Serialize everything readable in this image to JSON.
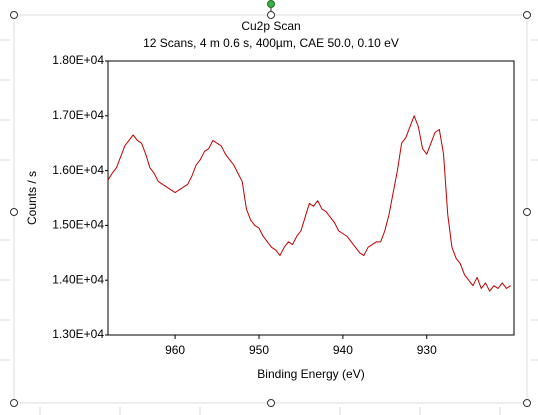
{
  "chart_data": {
    "type": "line",
    "title": "Cu2p Scan",
    "subtitle": "12 Scans,  4 m 0.6 s,  400µm,  CAE 50.0,  0.10 eV",
    "x_label": "Binding Energy (eV)",
    "y_label": "Counts / s",
    "color": "#c00000",
    "xlim": [
      968,
      919.6
    ],
    "xticks": [
      960,
      950,
      940,
      930
    ],
    "ylim": [
      13000,
      18000
    ],
    "yticks": [
      {
        "value": 13000,
        "label": "1.30E+04"
      },
      {
        "value": 14000,
        "label": "1.40E+04"
      },
      {
        "value": 15000,
        "label": "1.50E+04"
      },
      {
        "value": 16000,
        "label": "1.60E+04"
      },
      {
        "value": 17000,
        "label": "1.70E+04"
      },
      {
        "value": 18000,
        "label": "1.80E+04"
      }
    ],
    "x": [
      968,
      967.5,
      967,
      966.5,
      966,
      965.5,
      965,
      964.5,
      964,
      963.5,
      963,
      962.5,
      962,
      961.5,
      961,
      960.5,
      960,
      959.5,
      959,
      958.5,
      958,
      957.5,
      957,
      956.5,
      956,
      955.5,
      955,
      954.5,
      954,
      953.5,
      953,
      952.5,
      952,
      951.5,
      951,
      950.5,
      950,
      949.5,
      949,
      948.5,
      948,
      947.5,
      947,
      946.5,
      946,
      945.5,
      945,
      944.5,
      944,
      943.5,
      943,
      942.5,
      942,
      941.5,
      941,
      940.5,
      940,
      939.5,
      939,
      938.5,
      938,
      937.5,
      937,
      936.5,
      936,
      935.5,
      935,
      934.5,
      934,
      933.5,
      933,
      932.5,
      932,
      931.5,
      931,
      930.5,
      930,
      929.5,
      929,
      928.5,
      928,
      927.5,
      927,
      926.5,
      926,
      925.5,
      925,
      924.5,
      924,
      923.5,
      923,
      922.5,
      922,
      921.5,
      921,
      920.5,
      920
    ],
    "values": [
      15830,
      15950,
      16050,
      16250,
      16450,
      16550,
      16650,
      16550,
      16500,
      16300,
      16050,
      15950,
      15800,
      15750,
      15700,
      15650,
      15600,
      15650,
      15700,
      15750,
      15900,
      16100,
      16200,
      16350,
      16400,
      16550,
      16500,
      16450,
      16300,
      16200,
      16100,
      15950,
      15800,
      15300,
      15100,
      15000,
      14950,
      14800,
      14700,
      14600,
      14550,
      14450,
      14600,
      14700,
      14650,
      14800,
      14900,
      15150,
      15400,
      15350,
      15450,
      15300,
      15250,
      15150,
      15050,
      14900,
      14850,
      14800,
      14700,
      14600,
      14500,
      14450,
      14600,
      14650,
      14700,
      14700,
      14900,
      15200,
      15600,
      16000,
      16500,
      16600,
      16800,
      17000,
      16800,
      16400,
      16300,
      16500,
      16700,
      16750,
      16300,
      15200,
      14600,
      14400,
      14300,
      14100,
      14000,
      13900,
      14050,
      13850,
      13950,
      13800,
      13900,
      13850,
      13950,
      13850,
      13900
    ]
  }
}
